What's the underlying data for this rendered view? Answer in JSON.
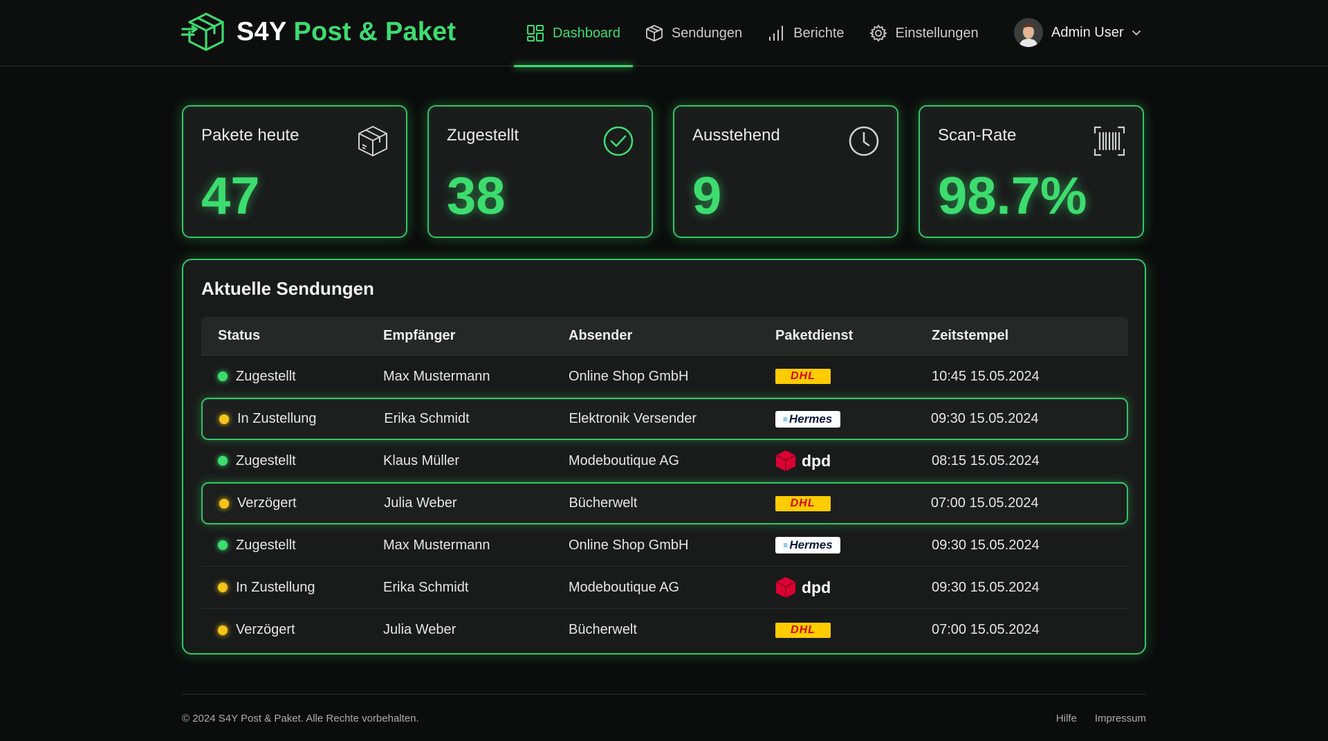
{
  "brand": {
    "name_prefix": "S4Y",
    "name_accent": "Post & Paket"
  },
  "nav": {
    "items": [
      {
        "label": "Dashboard",
        "icon": "dashboard-icon",
        "active": true
      },
      {
        "label": "Sendungen",
        "icon": "package-icon"
      },
      {
        "label": "Berichte",
        "icon": "bar-chart-icon"
      },
      {
        "label": "Einstellungen",
        "icon": "gear-icon"
      }
    ]
  },
  "user": {
    "name": "Admin User"
  },
  "kpis": [
    {
      "label": "Pakete heute",
      "value": "47",
      "icon": "box-icon"
    },
    {
      "label": "Zugestellt",
      "value": "38",
      "icon": "check-circle-icon"
    },
    {
      "label": "Ausstehend",
      "value": "9",
      "icon": "clock-icon"
    },
    {
      "label": "Scan-Rate",
      "value": "98.7%",
      "icon": "barcode-icon"
    }
  ],
  "shipments": {
    "title": "Aktuelle Sendungen",
    "columns": [
      "Status",
      "Empfänger",
      "Absender",
      "Paketdienst",
      "Zeitstempel"
    ],
    "rows": [
      {
        "status": "Zugestellt",
        "recipient": "Max Mustermann",
        "sender": "Online Shop GmbH",
        "carrier": "DHL",
        "timestamp": "10:45 15.05.2024"
      },
      {
        "status": "In Zustellung",
        "recipient": "Erika Schmidt",
        "sender": "Elektronik Versender",
        "carrier": "Hermes",
        "timestamp": "09:30 15.05.2024"
      },
      {
        "status": "Zugestellt",
        "recipient": "Klaus Müller",
        "sender": "Modeboutique AG",
        "carrier": "dpd",
        "timestamp": "08:15 15.05.2024"
      },
      {
        "status": "Verzögert",
        "recipient": "Julia Weber",
        "sender": "Bücherwelt",
        "carrier": "DHL",
        "timestamp": "07:00 15.05.2024"
      },
      {
        "status": "Zugestellt",
        "recipient": "Max Mustermann",
        "sender": "Online Shop GmbH",
        "carrier": "Hermes",
        "timestamp": "09:30 15.05.2024"
      },
      {
        "status": "In Zustellung",
        "recipient": "Erika Schmidt",
        "sender": "Modeboutique AG",
        "carrier": "dpd",
        "timestamp": "09:30 15.05.2024"
      },
      {
        "status": "Verzögert",
        "recipient": "Julia Weber",
        "sender": "Bücherwelt",
        "carrier": "DHL",
        "timestamp": "07:00 15.05.2024"
      }
    ]
  },
  "footer": {
    "copyright": "© 2024 S4Y Post & Paket. Alle Rechte vorbehalten.",
    "links": [
      "Hilfe",
      "Impressum"
    ]
  },
  "colors": {
    "accent": "#3ddc6e",
    "warning": "#f5c518",
    "background": "#0b0c0c",
    "card": "#1a1c1c"
  }
}
